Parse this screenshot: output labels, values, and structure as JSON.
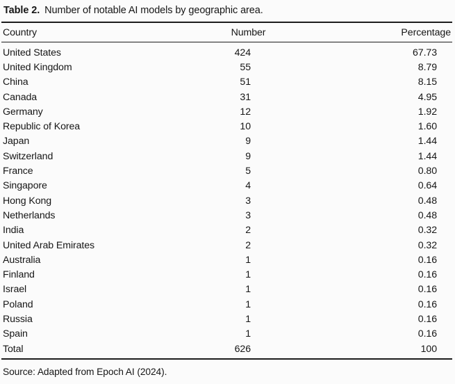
{
  "table": {
    "caption_label": "Table 2.",
    "caption_text": "Number of notable AI models by geographic area.",
    "columns": [
      "Country",
      "Number",
      "Percentage"
    ],
    "rows": [
      [
        "United States",
        "424",
        "67.73"
      ],
      [
        "United Kingdom",
        "55",
        "8.79"
      ],
      [
        "China",
        "51",
        "8.15"
      ],
      [
        "Canada",
        "31",
        "4.95"
      ],
      [
        "Germany",
        "12",
        "1.92"
      ],
      [
        "Republic of Korea",
        "10",
        "1.60"
      ],
      [
        "Japan",
        "9",
        "1.44"
      ],
      [
        "Switzerland",
        "9",
        "1.44"
      ],
      [
        "France",
        "5",
        "0.80"
      ],
      [
        "Singapore",
        "4",
        "0.64"
      ],
      [
        "Hong Kong",
        "3",
        "0.48"
      ],
      [
        "Netherlands",
        "3",
        "0.48"
      ],
      [
        "India",
        "2",
        "0.32"
      ],
      [
        "United Arab Emirates",
        "2",
        "0.32"
      ],
      [
        "Australia",
        "1",
        "0.16"
      ],
      [
        "Finland",
        "1",
        "0.16"
      ],
      [
        "Israel",
        "1",
        "0.16"
      ],
      [
        "Poland",
        "1",
        "0.16"
      ],
      [
        "Russia",
        "1",
        "0.16"
      ],
      [
        "Spain",
        "1",
        "0.16"
      ],
      [
        "Total",
        "626",
        "100"
      ]
    ],
    "source_note": "Source: Adapted from Epoch AI (2024)."
  },
  "colors": {
    "text": "#161616",
    "rule": "#1c1c1c",
    "background": "#fbfbfb"
  }
}
